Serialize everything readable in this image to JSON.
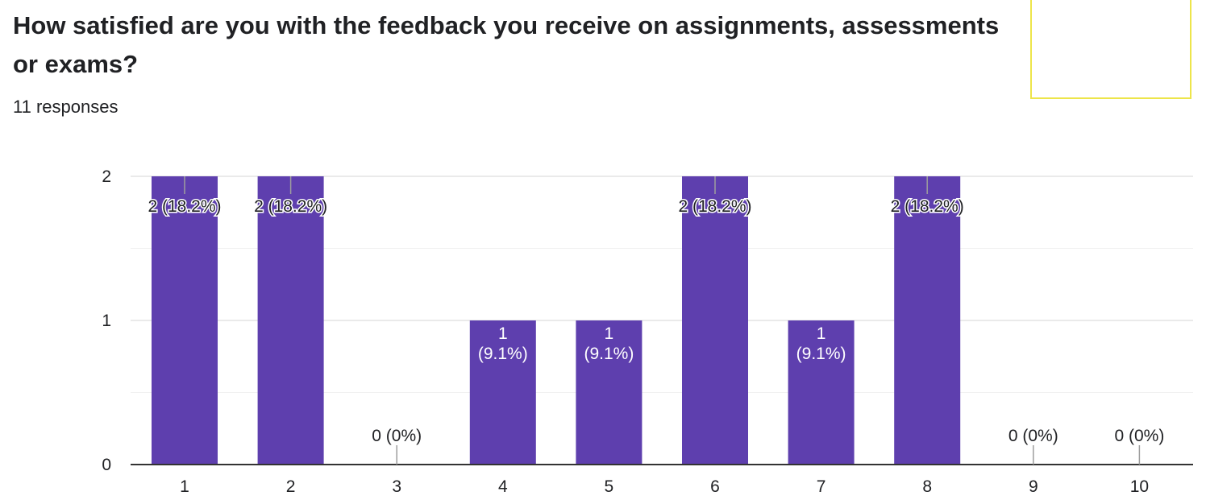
{
  "question": {
    "title": "How satisfied are you with the feedback you receive on assignments, assessments or exams?",
    "responses": "11 responses"
  },
  "chart_data": {
    "type": "bar",
    "categories": [
      "1",
      "2",
      "3",
      "4",
      "5",
      "6",
      "7",
      "8",
      "9",
      "10"
    ],
    "values": [
      2,
      2,
      0,
      1,
      1,
      2,
      1,
      2,
      0,
      0
    ],
    "data_labels": [
      "2 (18.2%)",
      "2 (18.2%)",
      "0 (0%)",
      "1\n(9.1%)",
      "1\n(9.1%)",
      "2 (18.2%)",
      "1\n(9.1%)",
      "2 (18.2%)",
      "0 (0%)",
      "0 (0%)"
    ],
    "y_ticks": [
      "0",
      "1",
      "2"
    ],
    "ylim": [
      0,
      2
    ],
    "grid": true,
    "bar_color": "#5e3fae"
  }
}
